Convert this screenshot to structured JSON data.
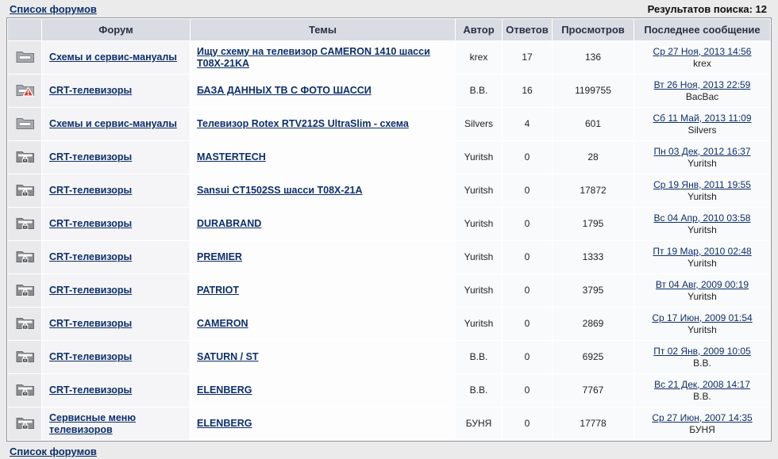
{
  "page": {
    "forum_list_link": "Список форумов",
    "results_label": "Результатов поиска: 12",
    "footer_link": "Список форумов"
  },
  "colors": {
    "link": "#0d2f6b",
    "header_bg": "#d9dce2",
    "table_border": "#909399",
    "page_bg": "#ebebeb",
    "announce_red": "#d03a2b"
  },
  "table": {
    "headers": [
      "Форум",
      "Темы",
      "Автор",
      "Ответов",
      "Просмотров",
      "Последнее сообщение"
    ],
    "rows": [
      {
        "icon": "folder-icon",
        "forum": "Схемы и сервис-мануалы",
        "topic": "Ищу схему на телевизор CAMERON 1410 шасси T08X-21KA",
        "author": "krex",
        "replies": "17",
        "views": "136",
        "last_post_date": "Ср 27 Ноя, 2013 14:56",
        "last_post_author": "krex"
      },
      {
        "icon": "folder-announce-icon",
        "forum": "CRT-телевизоры",
        "topic": "БАЗА ДАННЫХ ТВ С ФОТО ШАССИ",
        "author": "В.В.",
        "replies": "16",
        "views": "1199755",
        "last_post_date": "Вт 26 Ноя, 2013 22:59",
        "last_post_author": "ВасВас"
      },
      {
        "icon": "folder-icon",
        "forum": "Схемы и сервис-мануалы",
        "topic": "Телевизор Rotex RTV212S UltraSlim - схема",
        "author": "Silvers",
        "replies": "4",
        "views": "601",
        "last_post_date": "Сб 11 Май, 2013 11:09",
        "last_post_author": "Silvers"
      },
      {
        "icon": "folder-locked-icon",
        "forum": "CRT-телевизоры",
        "topic": "MASTERTECH",
        "author": "Yuritsh",
        "replies": "0",
        "views": "28",
        "last_post_date": "Пн 03 Дек, 2012 16:37",
        "last_post_author": "Yuritsh"
      },
      {
        "icon": "folder-locked-icon",
        "forum": "CRT-телевизоры",
        "topic": "Sansui CT1502SS шасси T08X-21A",
        "author": "Yuritsh",
        "replies": "0",
        "views": "17872",
        "last_post_date": "Ср 19 Янв, 2011 19:55",
        "last_post_author": "Yuritsh"
      },
      {
        "icon": "folder-locked-icon",
        "forum": "CRT-телевизоры",
        "topic": "DURABRAND",
        "author": "Yuritsh",
        "replies": "0",
        "views": "1795",
        "last_post_date": "Вс 04 Апр, 2010 03:58",
        "last_post_author": "Yuritsh"
      },
      {
        "icon": "folder-locked-icon",
        "forum": "CRT-телевизоры",
        "topic": "PREMIER",
        "author": "Yuritsh",
        "replies": "0",
        "views": "1333",
        "last_post_date": "Пт 19 Мар, 2010 02:48",
        "last_post_author": "Yuritsh"
      },
      {
        "icon": "folder-locked-icon",
        "forum": "CRT-телевизоры",
        "topic": "PATRIOT",
        "author": "Yuritsh",
        "replies": "0",
        "views": "3795",
        "last_post_date": "Вт 04 Авг, 2009 00:19",
        "last_post_author": "Yuritsh"
      },
      {
        "icon": "folder-locked-icon",
        "forum": "CRT-телевизоры",
        "topic": "CAMERON",
        "author": "Yuritsh",
        "replies": "0",
        "views": "2869",
        "last_post_date": "Ср 17 Июн, 2009 01:54",
        "last_post_author": "Yuritsh"
      },
      {
        "icon": "folder-locked-icon",
        "forum": "CRT-телевизоры",
        "topic": "SATURN / ST",
        "author": "В.В.",
        "replies": "0",
        "views": "6925",
        "last_post_date": "Пт 02 Янв, 2009 10:05",
        "last_post_author": "В.В."
      },
      {
        "icon": "folder-locked-icon",
        "forum": "CRT-телевизоры",
        "topic": "ELENBERG",
        "author": "В.В.",
        "replies": "0",
        "views": "7767",
        "last_post_date": "Вс 21 Дек, 2008 14:17",
        "last_post_author": "В.В."
      },
      {
        "icon": "folder-locked-icon",
        "forum": "Сервисные меню телевизоров",
        "topic": "ELENBERG",
        "author": "БУНЯ",
        "replies": "0",
        "views": "17778",
        "last_post_date": "Ср 27 Июн, 2007 14:35",
        "last_post_author": "БУНЯ"
      }
    ]
  }
}
